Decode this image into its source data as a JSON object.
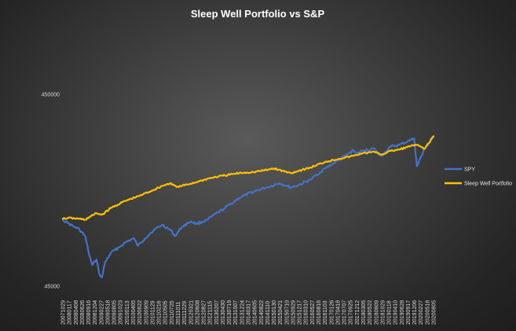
{
  "chart_data": {
    "type": "line",
    "title": "Sleep Well Portfolio vs S&P",
    "xlabel": "",
    "ylabel": "",
    "y_scale": "log",
    "ylim": [
      45000,
      450000
    ],
    "y_ticks": [
      45000,
      450000
    ],
    "grid": false,
    "legend_position": "right",
    "x_tick_labels": [
      "20071029",
      "20080117",
      "20080408",
      "20080626",
      "20080916",
      "20081204",
      "20090227",
      "20090518",
      "20090805",
      "20091023",
      "20100113",
      "20100405",
      "20100622",
      "20100909",
      "20101129",
      "20110216",
      "20110505",
      "20110725",
      "20111011",
      "20111229",
      "20120321",
      "20120608",
      "20120827",
      "20121115",
      "20130207",
      "20130430",
      "20130719",
      "20131007",
      "20131224",
      "20140317",
      "20140605",
      "20140822",
      "20141110",
      "20150130",
      "20150421",
      "20150710",
      "20150929",
      "20151217",
      "20160310",
      "20160527",
      "20160816",
      "20161103",
      "20170126",
      "20170418",
      "20170707",
      "20170925",
      "20171212",
      "20180305",
      "20180522",
      "20180809",
      "20181029",
      "20190118",
      "20190410",
      "20190628",
      "20190917",
      "20191206",
      "20200227",
      "20200518",
      "20200805"
    ],
    "series": [
      {
        "name": "SPY",
        "color": "#4472c4",
        "x": [
          2007.82,
          2008.0,
          2008.2,
          2008.4,
          2008.6,
          2008.75,
          2008.85,
          2009.0,
          2009.1,
          2009.19,
          2009.3,
          2009.5,
          2009.8,
          2010.0,
          2010.3,
          2010.45,
          2010.7,
          2011.0,
          2011.3,
          2011.6,
          2011.75,
          2012.0,
          2012.3,
          2012.5,
          2012.9,
          2013.0,
          2013.5,
          2014.0,
          2014.5,
          2015.0,
          2015.4,
          2015.65,
          2015.8,
          2016.1,
          2016.5,
          2017.0,
          2017.5,
          2018.0,
          2018.1,
          2018.7,
          2018.97,
          2019.3,
          2019.6,
          2020.0,
          2020.12,
          2020.22,
          2020.5,
          2020.8
        ],
        "y": [
          100000,
          96000,
          92000,
          89000,
          82000,
          65000,
          58000,
          62000,
          52000,
          50000,
          60000,
          67000,
          72000,
          76000,
          80000,
          73000,
          80000,
          88000,
          94000,
          88000,
          82000,
          92000,
          98000,
          95000,
          100000,
          103000,
          115000,
          130000,
          140000,
          148000,
          155000,
          150000,
          147000,
          152000,
          162000,
          185000,
          205000,
          230000,
          223000,
          235000,
          215000,
          240000,
          245000,
          260000,
          265000,
          190000,
          235000,
          270000
        ]
      },
      {
        "name": "Sleep Well Portfolio",
        "color": "#ffc000",
        "x": [
          2007.82,
          2008.0,
          2008.4,
          2008.6,
          2008.8,
          2009.0,
          2009.19,
          2009.5,
          2010.0,
          2010.5,
          2011.0,
          2011.3,
          2011.6,
          2011.8,
          2012.0,
          2012.5,
          2013.0,
          2013.5,
          2014.0,
          2014.5,
          2015.0,
          2015.2,
          2015.6,
          2015.8,
          2016.2,
          2016.5,
          2017.0,
          2017.5,
          2018.0,
          2018.3,
          2018.8,
          2018.97,
          2019.3,
          2019.6,
          2020.0,
          2020.2,
          2020.5,
          2020.8
        ],
        "y": [
          101000,
          102000,
          101000,
          100000,
          104000,
          108000,
          106000,
          115000,
          125000,
          133000,
          143000,
          150000,
          155000,
          148000,
          150000,
          157000,
          165000,
          170000,
          175000,
          177000,
          182000,
          185000,
          178000,
          175000,
          182000,
          187000,
          200000,
          208000,
          215000,
          222000,
          225000,
          218000,
          228000,
          232000,
          242000,
          245000,
          235000,
          272000
        ]
      }
    ]
  }
}
